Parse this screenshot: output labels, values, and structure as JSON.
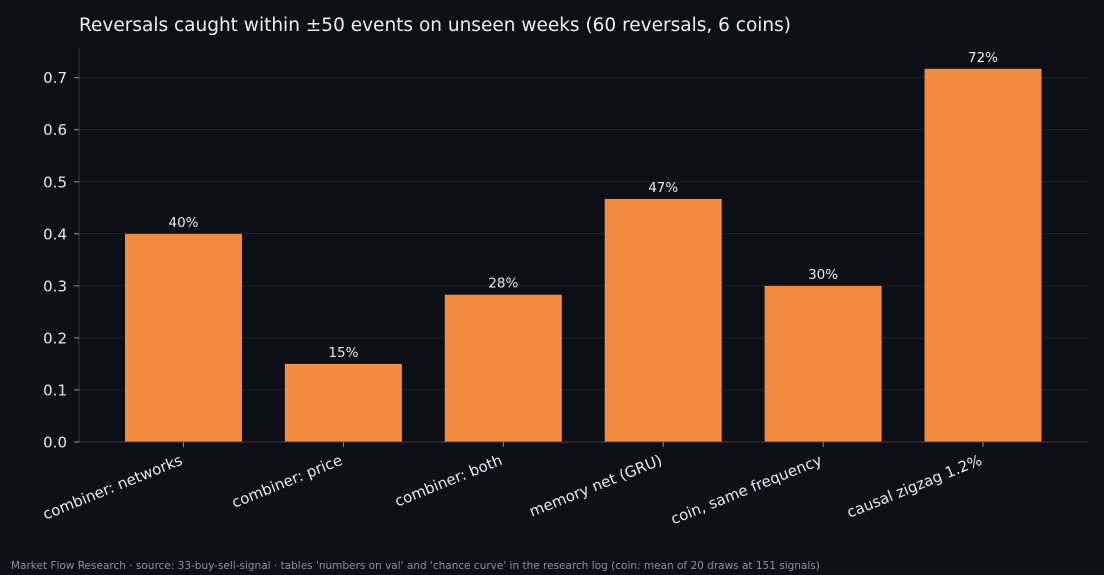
{
  "chart_data": {
    "type": "bar",
    "title": "Reversals caught within ±50 events on unseen weeks (60 reversals, 6 coins)",
    "xlabel": "",
    "ylabel": "",
    "categories": [
      "combiner: networks",
      "combiner: price",
      "combiner: both",
      "memory net (GRU)",
      "coin, same frequency",
      "causal zigzag 1.2%"
    ],
    "values": [
      0.4,
      0.15,
      0.283,
      0.467,
      0.3,
      0.717
    ],
    "data_labels": [
      "40%",
      "15%",
      "28%",
      "47%",
      "30%",
      "72%"
    ],
    "ylim": [
      0,
      0.757
    ],
    "yticks": [
      "0.0",
      "0.1",
      "0.2",
      "0.3",
      "0.4",
      "0.5",
      "0.6",
      "0.7"
    ],
    "grid": true,
    "legend": "none",
    "colors": {
      "bar": "#f28a3f",
      "background": "#0d0f16",
      "axis": "#3a3d46",
      "grid": "#1b1e26",
      "text": "#e8e8ec"
    }
  },
  "footer": "Market Flow Research · source: 33-buy-sell-signal · tables 'numbers on val' and 'chance curve' in the research log (coin: mean of 20 draws at 151 signals)"
}
